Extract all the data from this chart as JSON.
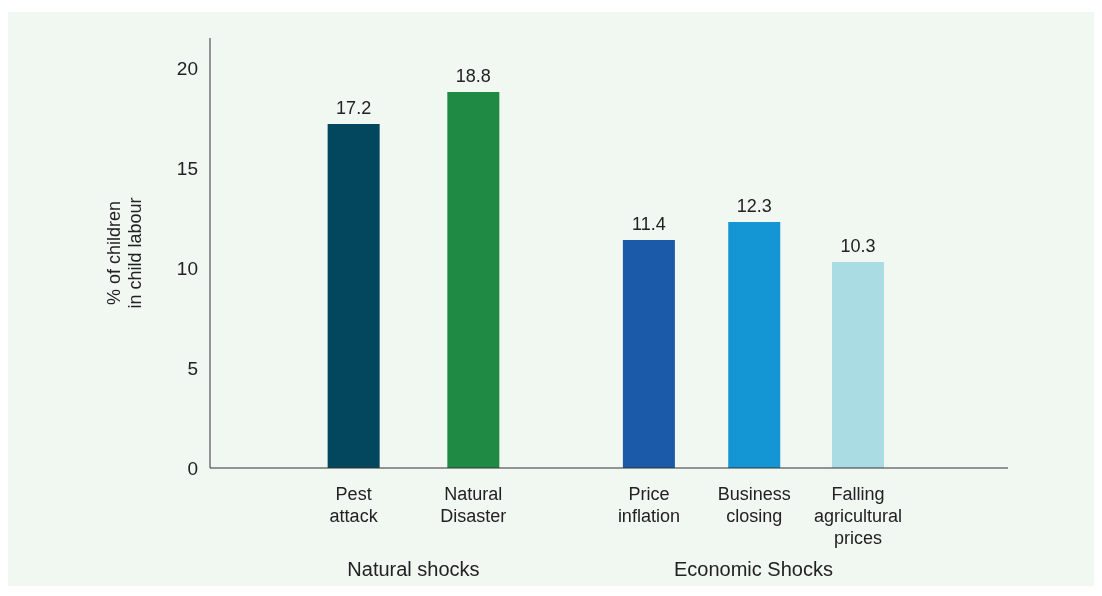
{
  "chart_data": {
    "type": "bar",
    "ylabel": "% of children in child labour",
    "categories": [
      "Pest attack",
      "Natural Disaster",
      "Price inflation",
      "Business closing",
      "Falling agricultural prices"
    ],
    "values": [
      17.2,
      18.8,
      11.4,
      12.3,
      10.3
    ],
    "colors": [
      "#02475e",
      "#1e8a44",
      "#1b5aa8",
      "#1496d4",
      "#a9dde3"
    ],
    "ylim": [
      0,
      21.5
    ],
    "yticks": [
      0,
      5,
      10,
      15,
      20
    ],
    "grid": false,
    "data_labels": true,
    "annotations": [
      "Natural shocks",
      "Economic Shocks"
    ]
  }
}
